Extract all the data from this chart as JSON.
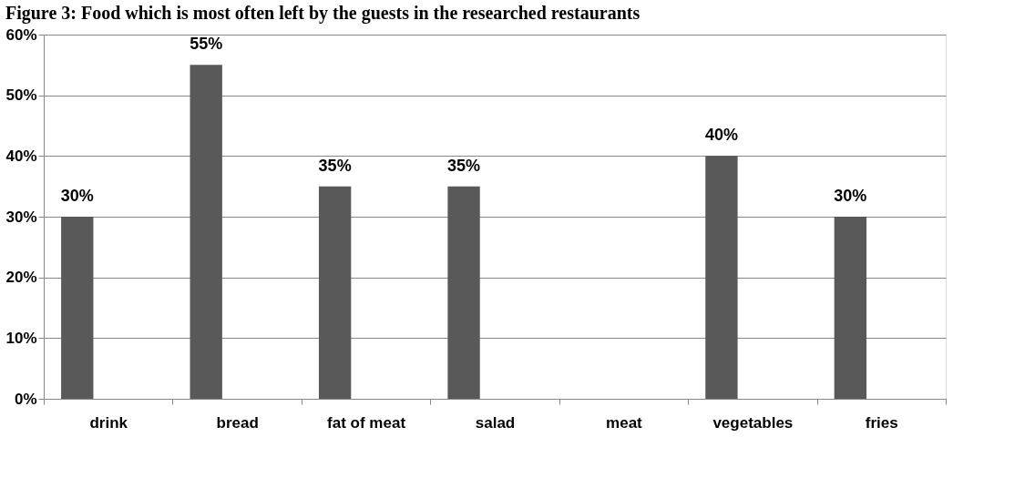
{
  "chart_data": {
    "type": "bar",
    "title": "Figure 3: Food which is most often left by the guests in the researched restaurants",
    "categories": [
      "drink",
      "bread",
      "fat of meat",
      "salad",
      "meat",
      "vegetables",
      "fries"
    ],
    "values": [
      30,
      55,
      35,
      35,
      null,
      40,
      30
    ],
    "color": "#595959",
    "ylim": [
      0,
      60
    ],
    "yticks": [
      {
        "value": 0,
        "label": "0%"
      },
      {
        "value": 10,
        "label": "10%"
      },
      {
        "value": 20,
        "label": "20%"
      },
      {
        "value": 30,
        "label": "30%"
      },
      {
        "value": 40,
        "label": "40%"
      },
      {
        "value": 50,
        "label": "50%"
      },
      {
        "value": 60,
        "label": "60%"
      }
    ],
    "value_labels": [
      "30%",
      "55%",
      "35%",
      "35%",
      null,
      "40%",
      "30%"
    ],
    "grid": "y"
  }
}
